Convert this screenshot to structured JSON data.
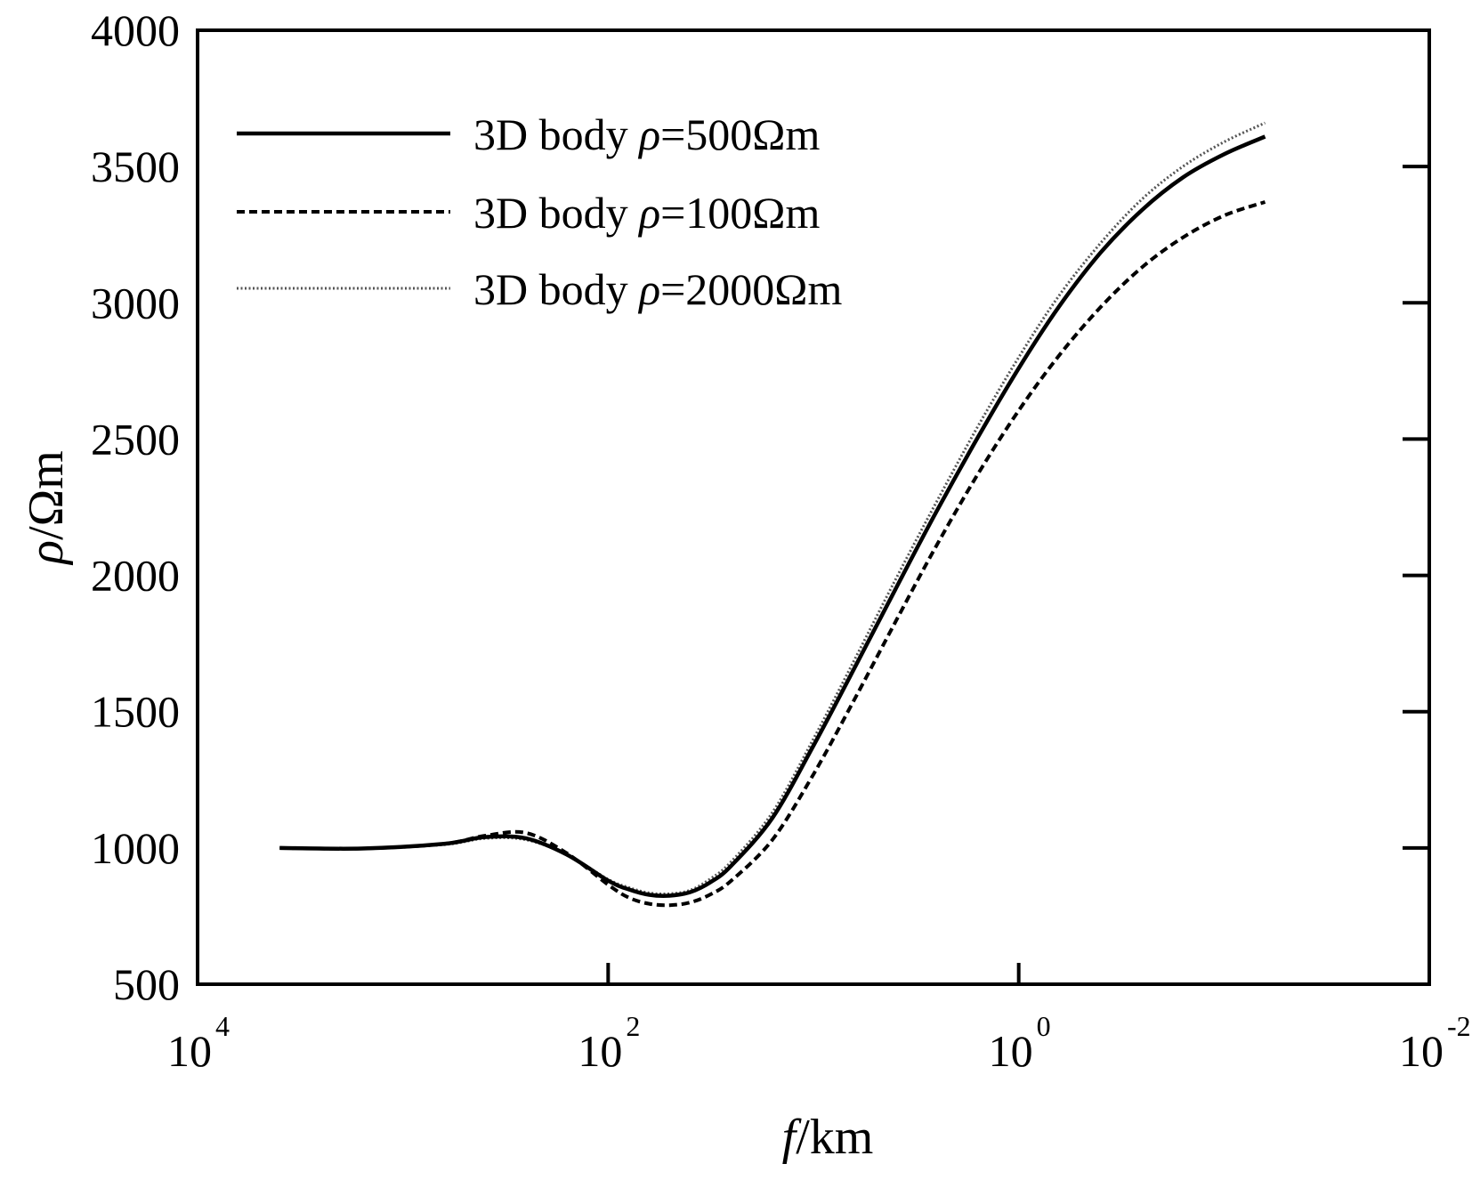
{
  "chart_data": {
    "type": "line",
    "xscale": "log",
    "xlim_exp": [
      4,
      -2
    ],
    "ylim": [
      500,
      4000
    ],
    "xlabel": {
      "italic": "f",
      "rest": "/km"
    },
    "ylabel": {
      "italic": "ρ",
      "rest": "/Ωm"
    },
    "x_ticks": [
      {
        "base": "10",
        "exp": "4",
        "value_exp": 4
      },
      {
        "base": "10",
        "exp": "2",
        "value_exp": 2
      },
      {
        "base": "10",
        "exp": "0",
        "value_exp": 0
      },
      {
        "base": "10",
        "exp": "-2",
        "value_exp": -2
      }
    ],
    "y_ticks": [
      {
        "label": "500",
        "value": 500
      },
      {
        "label": "1000",
        "value": 1000
      },
      {
        "label": "1500",
        "value": 1500
      },
      {
        "label": "2000",
        "value": 2000
      },
      {
        "label": "2500",
        "value": 2500
      },
      {
        "label": "3000",
        "value": 3000
      },
      {
        "label": "3500",
        "value": 3500
      },
      {
        "label": "4000",
        "value": 4000
      }
    ],
    "legend_position": "top-left",
    "series": [
      {
        "name": "3D body ρ=500Ωm",
        "legend_prefix": "3D body ",
        "legend_symbol": "ρ",
        "legend_suffix": "=500Ωm",
        "style": "solid",
        "x_log10": [
          3.6,
          3.2,
          2.8,
          2.6,
          2.4,
          2.2,
          2.0,
          1.9,
          1.8,
          1.7,
          1.6,
          1.5,
          1.4,
          1.2,
          1.0,
          0.8,
          0.6,
          0.4,
          0.2,
          0.0,
          -0.2,
          -0.4,
          -0.6,
          -0.8,
          -1.0,
          -1.2
        ],
        "y": [
          1000,
          998,
          1015,
          1040,
          1035,
          975,
          880,
          848,
          828,
          825,
          838,
          875,
          935,
          1110,
          1375,
          1660,
          1950,
          2235,
          2505,
          2760,
          2990,
          3185,
          3340,
          3460,
          3545,
          3610
        ]
      },
      {
        "name": "3D body ρ=100Ωm",
        "legend_prefix": "3D body ",
        "legend_symbol": "ρ",
        "legend_suffix": "=100Ωm",
        "style": "dashed",
        "x_log10": [
          3.6,
          3.2,
          2.8,
          2.6,
          2.4,
          2.2,
          2.0,
          1.9,
          1.8,
          1.7,
          1.6,
          1.5,
          1.4,
          1.2,
          1.0,
          0.8,
          0.6,
          0.4,
          0.2,
          0.0,
          -0.2,
          -0.4,
          -0.6,
          -0.8,
          -1.0,
          -1.2
        ],
        "y": [
          1000,
          998,
          1015,
          1045,
          1055,
          980,
          865,
          818,
          795,
          790,
          800,
          830,
          880,
          1030,
          1270,
          1545,
          1830,
          2110,
          2370,
          2605,
          2810,
          2985,
          3130,
          3240,
          3320,
          3370
        ]
      },
      {
        "name": "3D body ρ=2000Ωm",
        "legend_prefix": "3D body ",
        "legend_symbol": "ρ",
        "legend_suffix": "=2000Ωm",
        "style": "dotted",
        "x_log10": [
          3.6,
          3.2,
          2.8,
          2.6,
          2.4,
          2.2,
          2.0,
          1.9,
          1.8,
          1.7,
          1.6,
          1.5,
          1.4,
          1.2,
          1.0,
          0.8,
          0.6,
          0.4,
          0.2,
          0.0,
          -0.2,
          -0.4,
          -0.6,
          -0.8,
          -1.0,
          -1.2
        ],
        "y": [
          1000,
          998,
          1012,
          1035,
          1030,
          975,
          885,
          855,
          835,
          832,
          845,
          888,
          950,
          1130,
          1400,
          1690,
          1985,
          2270,
          2545,
          2800,
          3030,
          3220,
          3380,
          3500,
          3590,
          3660
        ]
      }
    ]
  }
}
